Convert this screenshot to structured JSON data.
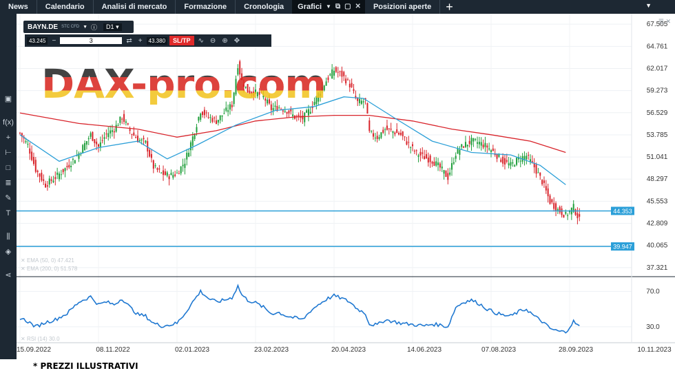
{
  "nav": {
    "tabs": [
      {
        "label": "News"
      },
      {
        "label": "Calendario"
      },
      {
        "label": "Analisi di mercato"
      },
      {
        "label": "Formazione"
      },
      {
        "label": "Cronologia"
      }
    ],
    "active_tab": "Grafici",
    "tab_after": "Posizioni aperte"
  },
  "instrument": {
    "symbol": "BAYN.DE",
    "type": "STC CFD",
    "timeframe": "D1"
  },
  "order": {
    "sell_price": "43.245",
    "quantity": "3",
    "buy_price": "43.380",
    "sltp_label": "SL/TP"
  },
  "watermark": "DAX-pro.com",
  "indicators": {
    "ema50": "EMA (50, 0) 47.421",
    "ema200": "EMA (200, 0) 51.578",
    "rsi": "RSI (14) 30.0"
  },
  "chart_data": {
    "type": "candlestick",
    "price_ticks": [
      "67.505",
      "64.761",
      "62.017",
      "59.273",
      "56.529",
      "53.785",
      "51.041",
      "48.297",
      "45.553",
      "42.809",
      "40.065",
      "37.321"
    ],
    "rsi_ticks": [
      "70.0",
      "30.0"
    ],
    "x_ticks": [
      "15.09.2022",
      "08.11.2022",
      "02.01.2023",
      "23.02.2023",
      "20.04.2023",
      "14.06.2023",
      "07.08.2023",
      "28.09.2023",
      "10.11.2023"
    ],
    "hlines": [
      {
        "label": "44.353",
        "value": 44.353
      },
      {
        "label": "39.947",
        "value": 39.947
      }
    ],
    "price_range": [
      36.2,
      68.8
    ],
    "rsi_range": [
      12,
      85
    ],
    "close_path": [
      [
        0,
        54.0
      ],
      [
        4,
        52.5
      ],
      [
        8,
        49.5
      ],
      [
        13,
        47.6
      ],
      [
        18,
        48.5
      ],
      [
        24,
        49.8
      ],
      [
        30,
        51.5
      ],
      [
        36,
        53.8
      ],
      [
        40,
        52.3
      ],
      [
        44,
        53.9
      ],
      [
        48,
        54.5
      ],
      [
        52,
        56.0
      ],
      [
        56,
        54.3
      ],
      [
        60,
        53.2
      ],
      [
        64,
        52.8
      ],
      [
        68,
        49.8
      ],
      [
        72,
        49.0
      ],
      [
        76,
        48.7
      ],
      [
        80,
        49.0
      ],
      [
        84,
        50.5
      ],
      [
        88,
        53.5
      ],
      [
        92,
        56.8
      ],
      [
        96,
        56.0
      ],
      [
        100,
        55.5
      ],
      [
        104,
        56.5
      ],
      [
        108,
        57.5
      ],
      [
        111,
        62.5
      ],
      [
        113,
        60.5
      ],
      [
        116,
        59.2
      ],
      [
        120,
        59.0
      ],
      [
        124,
        58.5
      ],
      [
        128,
        57.0
      ],
      [
        132,
        57.2
      ],
      [
        136,
        56.8
      ],
      [
        140,
        56.0
      ],
      [
        144,
        55.8
      ],
      [
        148,
        57.0
      ],
      [
        152,
        58.8
      ],
      [
        156,
        60.5
      ],
      [
        160,
        61.8
      ],
      [
        164,
        61.2
      ],
      [
        168,
        60.0
      ],
      [
        172,
        57.8
      ],
      [
        176,
        58.0
      ],
      [
        178,
        54.0
      ],
      [
        182,
        53.5
      ],
      [
        186,
        54.5
      ],
      [
        190,
        54.2
      ],
      [
        194,
        53.8
      ],
      [
        198,
        52.6
      ],
      [
        202,
        51.5
      ],
      [
        206,
        51.0
      ],
      [
        210,
        50.6
      ],
      [
        214,
        49.7
      ],
      [
        218,
        48.5
      ],
      [
        222,
        51.5
      ],
      [
        226,
        52.5
      ],
      [
        230,
        53.0
      ],
      [
        234,
        52.8
      ],
      [
        238,
        52.3
      ],
      [
        242,
        51.5
      ],
      [
        246,
        50.5
      ],
      [
        250,
        50.0
      ],
      [
        254,
        50.8
      ],
      [
        258,
        51.2
      ],
      [
        262,
        49.8
      ],
      [
        266,
        48.0
      ],
      [
        270,
        45.5
      ],
      [
        274,
        44.5
      ],
      [
        278,
        43.8
      ],
      [
        282,
        44.8
      ],
      [
        285,
        43.2
      ]
    ],
    "rsi_path": [
      [
        0,
        40
      ],
      [
        4,
        36
      ],
      [
        8,
        30
      ],
      [
        13,
        35
      ],
      [
        18,
        38
      ],
      [
        24,
        45
      ],
      [
        30,
        58
      ],
      [
        36,
        64
      ],
      [
        40,
        55
      ],
      [
        44,
        58
      ],
      [
        48,
        55
      ],
      [
        52,
        62
      ],
      [
        56,
        52
      ],
      [
        60,
        44
      ],
      [
        64,
        42
      ],
      [
        68,
        34
      ],
      [
        72,
        31
      ],
      [
        76,
        32
      ],
      [
        80,
        34
      ],
      [
        84,
        45
      ],
      [
        88,
        58
      ],
      [
        92,
        70
      ],
      [
        96,
        62
      ],
      [
        100,
        58
      ],
      [
        104,
        60
      ],
      [
        108,
        63
      ],
      [
        111,
        76
      ],
      [
        113,
        66
      ],
      [
        116,
        60
      ],
      [
        120,
        57
      ],
      [
        124,
        52
      ],
      [
        128,
        45
      ],
      [
        132,
        46
      ],
      [
        136,
        42
      ],
      [
        140,
        40
      ],
      [
        144,
        38
      ],
      [
        148,
        48
      ],
      [
        152,
        55
      ],
      [
        156,
        61
      ],
      [
        160,
        65
      ],
      [
        164,
        62
      ],
      [
        168,
        58
      ],
      [
        172,
        50
      ],
      [
        176,
        45
      ],
      [
        178,
        33
      ],
      [
        182,
        32
      ],
      [
        186,
        38
      ],
      [
        190,
        36
      ],
      [
        194,
        34
      ],
      [
        198,
        33
      ],
      [
        202,
        32
      ],
      [
        206,
        31
      ],
      [
        210,
        33
      ],
      [
        214,
        32
      ],
      [
        218,
        30
      ],
      [
        222,
        52
      ],
      [
        226,
        58
      ],
      [
        230,
        60
      ],
      [
        234,
        56
      ],
      [
        238,
        50
      ],
      [
        242,
        46
      ],
      [
        246,
        43
      ],
      [
        250,
        42
      ],
      [
        254,
        47
      ],
      [
        258,
        50
      ],
      [
        262,
        42
      ],
      [
        266,
        36
      ],
      [
        270,
        28
      ],
      [
        274,
        25
      ],
      [
        278,
        24
      ],
      [
        282,
        36
      ],
      [
        285,
        30
      ]
    ],
    "ema50_path": [
      [
        0,
        53.8
      ],
      [
        20,
        50.5
      ],
      [
        40,
        52.2
      ],
      [
        60,
        53.0
      ],
      [
        75,
        50.8
      ],
      [
        90,
        52.5
      ],
      [
        110,
        55.0
      ],
      [
        130,
        56.8
      ],
      [
        150,
        57.3
      ],
      [
        165,
        58.5
      ],
      [
        175,
        58.3
      ],
      [
        190,
        56.0
      ],
      [
        210,
        53.0
      ],
      [
        230,
        51.6
      ],
      [
        250,
        51.3
      ],
      [
        265,
        50.0
      ],
      [
        278,
        47.6
      ]
    ],
    "ema200_path": [
      [
        0,
        56.5
      ],
      [
        30,
        55.2
      ],
      [
        60,
        54.5
      ],
      [
        80,
        53.5
      ],
      [
        100,
        54.3
      ],
      [
        120,
        55.5
      ],
      [
        140,
        56.0
      ],
      [
        160,
        56.2
      ],
      [
        178,
        56.2
      ],
      [
        200,
        55.5
      ],
      [
        220,
        54.5
      ],
      [
        240,
        53.8
      ],
      [
        260,
        53.0
      ],
      [
        278,
        51.6
      ]
    ]
  },
  "footnote": "* PREZZI ILLUSTRATIVI"
}
